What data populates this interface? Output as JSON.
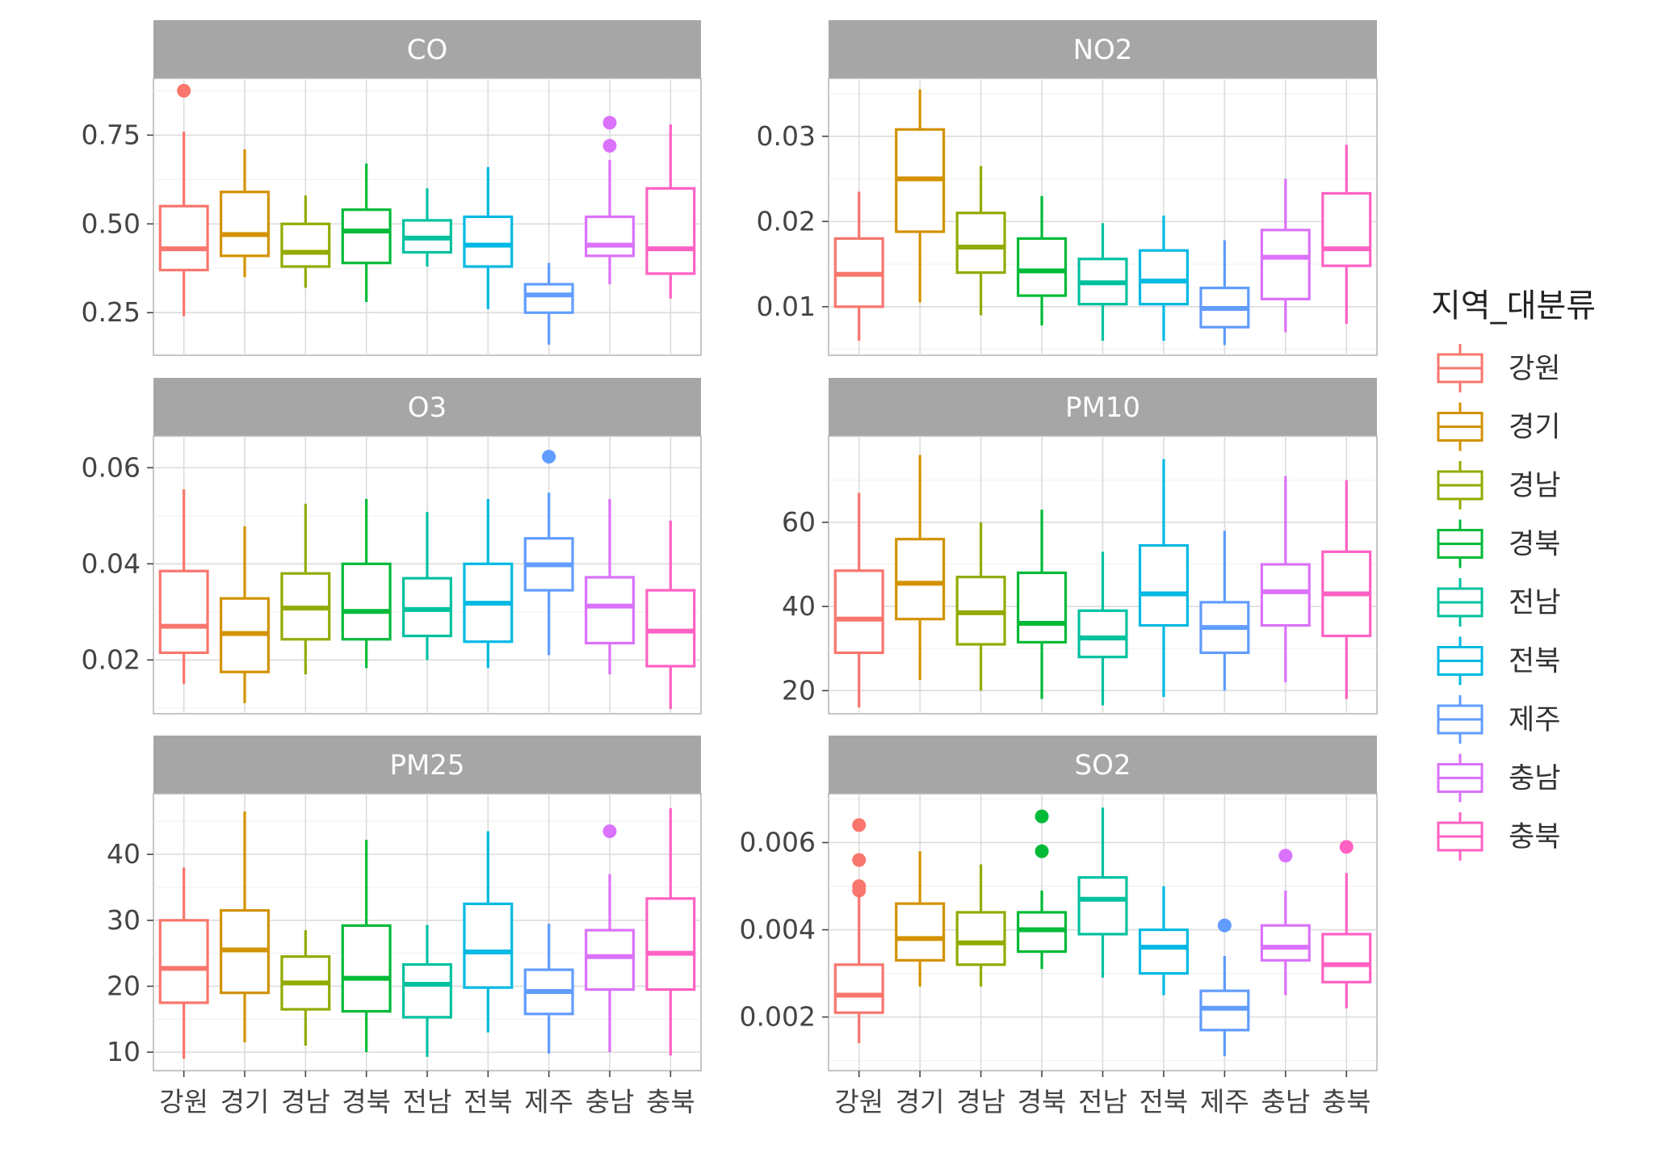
{
  "chart_data": {
    "type": "boxplot",
    "facet_variable": "",
    "categories": [
      "강원",
      "경기",
      "경남",
      "경북",
      "전남",
      "전북",
      "제주",
      "충남",
      "충북"
    ],
    "colors": [
      "#F8766D",
      "#D39200",
      "#93AA00",
      "#00BA38",
      "#00C19F",
      "#00B9E3",
      "#619CFF",
      "#DB72FB",
      "#FF61C3"
    ],
    "legend": {
      "title": "지역_대분류",
      "position": "right",
      "items": [
        "강원",
        "경기",
        "경남",
        "경북",
        "전남",
        "전북",
        "제주",
        "충남",
        "충북"
      ]
    },
    "grid": true,
    "panels": [
      {
        "title": "CO",
        "ylim": [
          0.13,
          0.91
        ],
        "yticks": [
          0.25,
          0.5,
          0.75
        ],
        "ytick_labels": [
          "0.25",
          "0.50",
          "0.75"
        ],
        "boxes": [
          {
            "category": "강원",
            "whisker_low": 0.24,
            "q1": 0.37,
            "median": 0.43,
            "q3": 0.55,
            "whisker_high": 0.76,
            "outliers": [
              0.875
            ]
          },
          {
            "category": "경기",
            "whisker_low": 0.35,
            "q1": 0.41,
            "median": 0.47,
            "q3": 0.59,
            "whisker_high": 0.71,
            "outliers": []
          },
          {
            "category": "경남",
            "whisker_low": 0.32,
            "q1": 0.38,
            "median": 0.42,
            "q3": 0.5,
            "whisker_high": 0.58,
            "outliers": []
          },
          {
            "category": "경북",
            "whisker_low": 0.28,
            "q1": 0.39,
            "median": 0.48,
            "q3": 0.54,
            "whisker_high": 0.67,
            "outliers": []
          },
          {
            "category": "전남",
            "whisker_low": 0.38,
            "q1": 0.42,
            "median": 0.46,
            "q3": 0.51,
            "whisker_high": 0.6,
            "outliers": []
          },
          {
            "category": "전북",
            "whisker_low": 0.26,
            "q1": 0.38,
            "median": 0.44,
            "q3": 0.52,
            "whisker_high": 0.66,
            "outliers": []
          },
          {
            "category": "제주",
            "whisker_low": 0.16,
            "q1": 0.25,
            "median": 0.3,
            "q3": 0.33,
            "whisker_high": 0.39,
            "outliers": []
          },
          {
            "category": "충남",
            "whisker_low": 0.33,
            "q1": 0.41,
            "median": 0.44,
            "q3": 0.52,
            "whisker_high": 0.68,
            "outliers": [
              0.72,
              0.785
            ]
          },
          {
            "category": "충북",
            "whisker_low": 0.29,
            "q1": 0.36,
            "median": 0.43,
            "q3": 0.6,
            "whisker_high": 0.78,
            "outliers": []
          }
        ]
      },
      {
        "title": "NO2",
        "ylim": [
          0.0043,
          0.0368
        ],
        "yticks": [
          0.01,
          0.02,
          0.03
        ],
        "ytick_labels": [
          "0.01",
          "0.02",
          "0.03"
        ],
        "boxes": [
          {
            "category": "강원",
            "whisker_low": 0.006,
            "q1": 0.01,
            "median": 0.0138,
            "q3": 0.018,
            "whisker_high": 0.0235,
            "outliers": []
          },
          {
            "category": "경기",
            "whisker_low": 0.0105,
            "q1": 0.0188,
            "median": 0.025,
            "q3": 0.0308,
            "whisker_high": 0.0355,
            "outliers": []
          },
          {
            "category": "경남",
            "whisker_low": 0.009,
            "q1": 0.014,
            "median": 0.017,
            "q3": 0.021,
            "whisker_high": 0.0265,
            "outliers": []
          },
          {
            "category": "경북",
            "whisker_low": 0.0078,
            "q1": 0.0113,
            "median": 0.0142,
            "q3": 0.018,
            "whisker_high": 0.023,
            "outliers": []
          },
          {
            "category": "전남",
            "whisker_low": 0.006,
            "q1": 0.0103,
            "median": 0.0128,
            "q3": 0.0156,
            "whisker_high": 0.0198,
            "outliers": []
          },
          {
            "category": "전북",
            "whisker_low": 0.006,
            "q1": 0.0103,
            "median": 0.013,
            "q3": 0.0166,
            "whisker_high": 0.0207,
            "outliers": []
          },
          {
            "category": "제주",
            "whisker_low": 0.0055,
            "q1": 0.0076,
            "median": 0.0098,
            "q3": 0.0122,
            "whisker_high": 0.0178,
            "outliers": []
          },
          {
            "category": "충남",
            "whisker_low": 0.007,
            "q1": 0.0109,
            "median": 0.0158,
            "q3": 0.019,
            "whisker_high": 0.025,
            "outliers": []
          },
          {
            "category": "충북",
            "whisker_low": 0.008,
            "q1": 0.0148,
            "median": 0.0168,
            "q3": 0.0233,
            "whisker_high": 0.029,
            "outliers": []
          }
        ]
      },
      {
        "title": "O3",
        "ylim": [
          0.0088,
          0.0666
        ],
        "yticks": [
          0.02,
          0.04,
          0.06
        ],
        "ytick_labels": [
          "0.02",
          "0.04",
          "0.06"
        ],
        "boxes": [
          {
            "category": "강원",
            "whisker_low": 0.015,
            "q1": 0.0215,
            "median": 0.027,
            "q3": 0.0385,
            "whisker_high": 0.0555,
            "outliers": []
          },
          {
            "category": "경기",
            "whisker_low": 0.011,
            "q1": 0.0175,
            "median": 0.0255,
            "q3": 0.0328,
            "whisker_high": 0.0478,
            "outliers": []
          },
          {
            "category": "경남",
            "whisker_low": 0.017,
            "q1": 0.0243,
            "median": 0.0308,
            "q3": 0.038,
            "whisker_high": 0.0525,
            "outliers": []
          },
          {
            "category": "경북",
            "whisker_low": 0.0183,
            "q1": 0.0243,
            "median": 0.0301,
            "q3": 0.04,
            "whisker_high": 0.0535,
            "outliers": []
          },
          {
            "category": "전남",
            "whisker_low": 0.02,
            "q1": 0.025,
            "median": 0.0305,
            "q3": 0.037,
            "whisker_high": 0.0508,
            "outliers": []
          },
          {
            "category": "전북",
            "whisker_low": 0.0183,
            "q1": 0.0238,
            "median": 0.0318,
            "q3": 0.04,
            "whisker_high": 0.0535,
            "outliers": []
          },
          {
            "category": "제주",
            "whisker_low": 0.021,
            "q1": 0.0345,
            "median": 0.0398,
            "q3": 0.0453,
            "whisker_high": 0.0548,
            "outliers": [
              0.0623
            ]
          },
          {
            "category": "충남",
            "whisker_low": 0.017,
            "q1": 0.0235,
            "median": 0.0312,
            "q3": 0.0372,
            "whisker_high": 0.0535,
            "outliers": []
          },
          {
            "category": "충북",
            "whisker_low": 0.0098,
            "q1": 0.0187,
            "median": 0.026,
            "q3": 0.0345,
            "whisker_high": 0.049,
            "outliers": []
          }
        ]
      },
      {
        "title": "PM10",
        "ylim": [
          14.5,
          80.5
        ],
        "yticks": [
          20,
          40,
          60
        ],
        "ytick_labels": [
          "20",
          "40",
          "60"
        ],
        "boxes": [
          {
            "category": "강원",
            "whisker_low": 16,
            "q1": 29,
            "median": 37,
            "q3": 48.5,
            "whisker_high": 67,
            "outliers": []
          },
          {
            "category": "경기",
            "whisker_low": 22.5,
            "q1": 37,
            "median": 45.5,
            "q3": 56,
            "whisker_high": 76,
            "outliers": []
          },
          {
            "category": "경남",
            "whisker_low": 20,
            "q1": 31,
            "median": 38.5,
            "q3": 47,
            "whisker_high": 60,
            "outliers": []
          },
          {
            "category": "경북",
            "whisker_low": 18,
            "q1": 31.5,
            "median": 36,
            "q3": 48,
            "whisker_high": 63,
            "outliers": []
          },
          {
            "category": "전남",
            "whisker_low": 16.5,
            "q1": 28,
            "median": 32.5,
            "q3": 39,
            "whisker_high": 53,
            "outliers": []
          },
          {
            "category": "전북",
            "whisker_low": 18.5,
            "q1": 35.5,
            "median": 43,
            "q3": 54.5,
            "whisker_high": 75,
            "outliers": []
          },
          {
            "category": "제주",
            "whisker_low": 20,
            "q1": 29,
            "median": 35,
            "q3": 41,
            "whisker_high": 58,
            "outliers": []
          },
          {
            "category": "충남",
            "whisker_low": 22,
            "q1": 35.5,
            "median": 43.5,
            "q3": 50,
            "whisker_high": 71,
            "outliers": []
          },
          {
            "category": "충북",
            "whisker_low": 18,
            "q1": 33,
            "median": 43,
            "q3": 53,
            "whisker_high": 70,
            "outliers": []
          }
        ]
      },
      {
        "title": "PM25",
        "ylim": [
          7.2,
          49.2
        ],
        "yticks": [
          10,
          20,
          30,
          40
        ],
        "ytick_labels": [
          "10",
          "20",
          "30",
          "40"
        ],
        "boxes": [
          {
            "category": "강원",
            "whisker_low": 9,
            "q1": 17.5,
            "median": 22.7,
            "q3": 30,
            "whisker_high": 38,
            "outliers": []
          },
          {
            "category": "경기",
            "whisker_low": 11.5,
            "q1": 19,
            "median": 25.5,
            "q3": 31.5,
            "whisker_high": 46.5,
            "outliers": []
          },
          {
            "category": "경남",
            "whisker_low": 11,
            "q1": 16.5,
            "median": 20.5,
            "q3": 24.5,
            "whisker_high": 28.5,
            "outliers": []
          },
          {
            "category": "경북",
            "whisker_low": 10,
            "q1": 16.2,
            "median": 21.2,
            "q3": 29.2,
            "whisker_high": 42.2,
            "outliers": []
          },
          {
            "category": "전남",
            "whisker_low": 9.3,
            "q1": 15.3,
            "median": 20.3,
            "q3": 23.3,
            "whisker_high": 29.3,
            "outliers": []
          },
          {
            "category": "전북",
            "whisker_low": 13,
            "q1": 19.8,
            "median": 25.2,
            "q3": 32.5,
            "whisker_high": 43.5,
            "outliers": []
          },
          {
            "category": "제주",
            "whisker_low": 9.8,
            "q1": 15.8,
            "median": 19.2,
            "q3": 22.5,
            "whisker_high": 29.5,
            "outliers": []
          },
          {
            "category": "충남",
            "whisker_low": 10,
            "q1": 19.5,
            "median": 24.5,
            "q3": 28.5,
            "whisker_high": 37,
            "outliers": [
              43.5
            ]
          },
          {
            "category": "충북",
            "whisker_low": 9.5,
            "q1": 19.5,
            "median": 25,
            "q3": 33.3,
            "whisker_high": 47,
            "outliers": []
          }
        ]
      },
      {
        "title": "SO2",
        "ylim": [
          0.00077,
          0.00712
        ],
        "yticks": [
          0.002,
          0.004,
          0.006
        ],
        "ytick_labels": [
          "0.002",
          "0.004",
          "0.006"
        ],
        "boxes": [
          {
            "category": "강원",
            "whisker_low": 0.0014,
            "q1": 0.0021,
            "median": 0.0025,
            "q3": 0.0032,
            "whisker_high": 0.0048,
            "outliers": [
              0.0049,
              0.005,
              0.0056,
              0.0064
            ]
          },
          {
            "category": "경기",
            "whisker_low": 0.0027,
            "q1": 0.0033,
            "median": 0.0038,
            "q3": 0.0046,
            "whisker_high": 0.0058,
            "outliers": []
          },
          {
            "category": "경남",
            "whisker_low": 0.0027,
            "q1": 0.0032,
            "median": 0.0037,
            "q3": 0.0044,
            "whisker_high": 0.0055,
            "outliers": []
          },
          {
            "category": "경북",
            "whisker_low": 0.0031,
            "q1": 0.0035,
            "median": 0.004,
            "q3": 0.0044,
            "whisker_high": 0.0049,
            "outliers": [
              0.0058,
              0.0066
            ]
          },
          {
            "category": "전남",
            "whisker_low": 0.0029,
            "q1": 0.0039,
            "median": 0.0047,
            "q3": 0.0052,
            "whisker_high": 0.0068,
            "outliers": []
          },
          {
            "category": "전북",
            "whisker_low": 0.0025,
            "q1": 0.003,
            "median": 0.0036,
            "q3": 0.004,
            "whisker_high": 0.005,
            "outliers": []
          },
          {
            "category": "제주",
            "whisker_low": 0.0011,
            "q1": 0.0017,
            "median": 0.0022,
            "q3": 0.0026,
            "whisker_high": 0.0034,
            "outliers": [
              0.0041
            ]
          },
          {
            "category": "충남",
            "whisker_low": 0.0025,
            "q1": 0.0033,
            "median": 0.0036,
            "q3": 0.0041,
            "whisker_high": 0.0049,
            "outliers": [
              0.0057
            ]
          },
          {
            "category": "충북",
            "whisker_low": 0.0022,
            "q1": 0.0028,
            "median": 0.0032,
            "q3": 0.0039,
            "whisker_high": 0.0053,
            "outliers": [
              0.0059
            ]
          }
        ]
      }
    ]
  }
}
